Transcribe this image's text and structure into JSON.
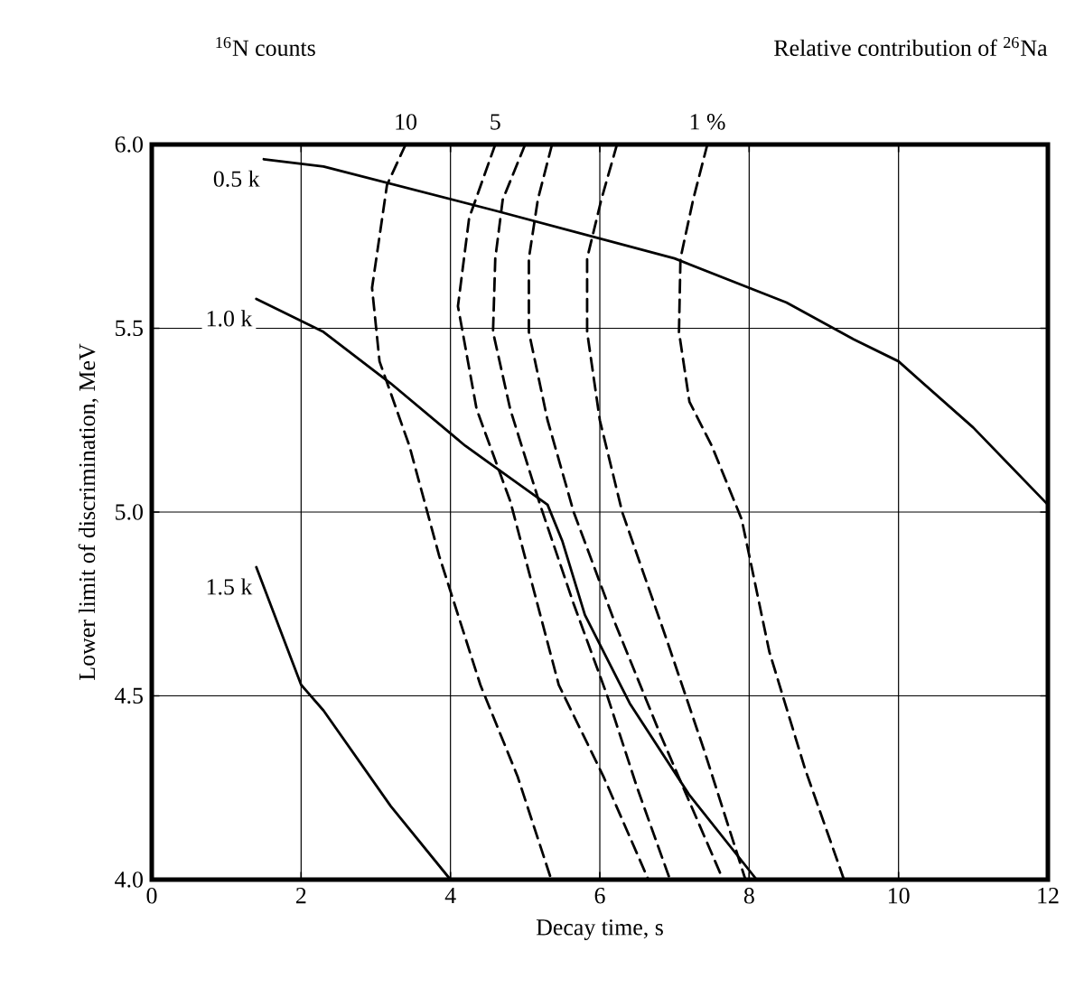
{
  "chart_data": {
    "type": "line",
    "xlabel": "Decay time, s",
    "ylabel": "Lower limit of discrimination, MeV",
    "annotations": [
      "$^{16}$N counts",
      "Relative contribution of $^{26}$Na"
    ],
    "xlim": [
      0,
      12
    ],
    "ylim": [
      4.0,
      6.0
    ],
    "xticks": [
      0,
      2,
      4,
      6,
      8,
      10,
      12
    ],
    "yticks": [
      {
        "value": 4.0,
        "label": "4.0"
      },
      {
        "value": 4.5,
        "label": "4.5"
      },
      {
        "value": 5.0,
        "label": "5.0"
      },
      {
        "value": 5.5,
        "label": "5.5"
      },
      {
        "value": 6.0,
        "label": "6.0"
      }
    ],
    "grid": true,
    "marker": "none",
    "series": [
      {
        "name": "0.5 k",
        "color": "#000000",
        "line_style": "solid",
        "x": [
          1.5,
          2.3,
          4.6,
          7.0,
          8.5,
          9.4,
          10.0,
          11.0,
          12.0
        ],
        "values": [
          5.96,
          5.94,
          5.82,
          5.69,
          5.57,
          5.47,
          5.41,
          5.23,
          5.02
        ]
      },
      {
        "name": "1.0 k",
        "color": "#000000",
        "line_style": "solid",
        "x": [
          1.4,
          2.3,
          3.2,
          4.2,
          5.3,
          5.5,
          5.8,
          6.4,
          7.2,
          8.1
        ],
        "values": [
          5.58,
          5.49,
          5.35,
          5.18,
          5.02,
          4.92,
          4.72,
          4.48,
          4.23,
          4.0
        ]
      },
      {
        "name": "1.5 k",
        "color": "#000000",
        "line_style": "solid",
        "x": [
          1.4,
          2.0,
          2.3,
          3.2,
          4.0
        ],
        "values": [
          4.85,
          4.53,
          4.46,
          4.2,
          4.0
        ]
      },
      {
        "name": "10",
        "color": "#000000",
        "line_style": "dashed",
        "x": [
          3.4,
          3.15,
          2.95,
          3.05,
          3.45,
          3.85,
          4.4,
          4.9,
          5.35
        ],
        "values": [
          6.0,
          5.89,
          5.61,
          5.41,
          5.18,
          4.88,
          4.53,
          4.28,
          4.0
        ]
      },
      {
        "name": "5",
        "color": "#000000",
        "line_style": "dashed",
        "x": [
          4.6,
          4.25,
          4.1,
          4.35,
          4.8,
          5.45,
          6.05,
          6.65
        ],
        "values": [
          6.0,
          5.8,
          5.56,
          5.28,
          5.03,
          4.53,
          4.28,
          4.0
        ]
      },
      {
        "color": "#000000",
        "line_style": "dashed",
        "x": [
          5.0,
          4.7,
          4.6,
          4.57,
          4.8,
          5.2,
          5.65,
          6.1,
          6.5,
          6.94
        ],
        "values": [
          6.0,
          5.85,
          5.69,
          5.49,
          5.28,
          5.02,
          4.75,
          4.5,
          4.25,
          4.0
        ]
      },
      {
        "color": "#000000",
        "line_style": "dashed",
        "x": [
          5.36,
          5.17,
          5.05,
          5.05,
          5.3,
          5.65,
          6.2,
          6.8,
          7.65
        ],
        "values": [
          6.0,
          5.85,
          5.69,
          5.49,
          5.25,
          5.0,
          4.7,
          4.4,
          4.0
        ]
      },
      {
        "color": "#000000",
        "line_style": "dashed",
        "x": [
          6.23,
          6.02,
          5.83,
          5.83,
          6.0,
          6.3,
          6.9,
          7.4,
          7.95
        ],
        "values": [
          6.0,
          5.85,
          5.69,
          5.49,
          5.25,
          5.0,
          4.65,
          4.35,
          4.0
        ]
      },
      {
        "name": "1 %",
        "color": "#000000",
        "line_style": "dashed",
        "x": [
          7.44,
          7.25,
          7.08,
          7.06,
          7.2,
          7.5,
          7.9,
          8.27,
          8.75,
          9.27
        ],
        "values": [
          6.0,
          5.85,
          5.69,
          5.49,
          5.3,
          5.18,
          4.98,
          4.62,
          4.3,
          4.0
        ]
      }
    ]
  }
}
